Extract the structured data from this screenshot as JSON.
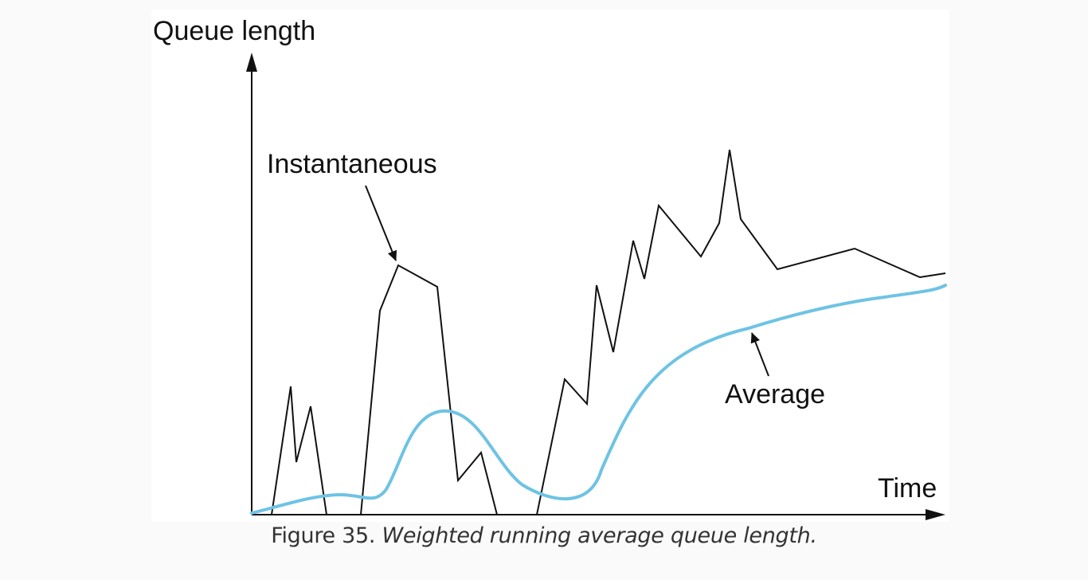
{
  "figure": {
    "y_axis_label": "Queue length",
    "x_axis_label": "Time",
    "instantaneous_label": "Instantaneous",
    "average_label": "Average",
    "caption_label": "Figure 35.",
    "caption_text": "Weighted running average queue length."
  },
  "colors": {
    "axes": "#111111",
    "instantaneous": "#111111",
    "average": "#6ec3e4",
    "panel": "#ffffff",
    "page": "#fafafa",
    "caption": "#333333"
  }
}
